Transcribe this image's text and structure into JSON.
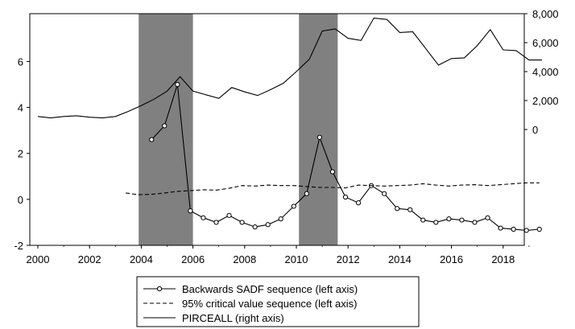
{
  "chart_data": {
    "type": "line",
    "x_ticks": [
      "2000",
      "2002",
      "2004",
      "2006",
      "2008",
      "2010",
      "2012",
      "2014",
      "2016",
      "2018"
    ],
    "left_axis": {
      "ylim": [
        -2,
        8.08
      ],
      "ticks": [
        "-2",
        "0",
        "2",
        "4",
        "6"
      ],
      "tick_values": [
        -2,
        0,
        2,
        4,
        6
      ]
    },
    "right_axis": {
      "ylim": [
        -8000,
        8000
      ],
      "ticks": [
        "0",
        "2,000",
        "4,000",
        "6,000",
        "8,000"
      ],
      "tick_values": [
        0,
        2000,
        4000,
        6000,
        8000
      ]
    },
    "shaded_periods": [
      {
        "start": 2003.9,
        "end": 2006.0
      },
      {
        "start": 2010.1,
        "end": 2011.6
      }
    ],
    "series": [
      {
        "name": "Backwards SADF sequence (left axis)",
        "axis": "left",
        "style": "line-circle-markers",
        "x": [
          2004.4,
          2004.9,
          2005.4,
          2005.9,
          2006.4,
          2006.9,
          2007.4,
          2007.9,
          2008.4,
          2008.9,
          2009.4,
          2009.9,
          2010.4,
          2010.9,
          2011.4,
          2011.9,
          2012.4,
          2012.9,
          2013.4,
          2013.9,
          2014.4,
          2014.9,
          2015.4,
          2015.9,
          2016.4,
          2016.9,
          2017.4,
          2017.9,
          2018.4,
          2018.9,
          2019.4
        ],
        "y": [
          2.6,
          3.2,
          5.0,
          -0.5,
          -0.8,
          -1.0,
          -0.7,
          -1.0,
          -1.2,
          -1.1,
          -0.85,
          -0.3,
          0.25,
          2.7,
          1.2,
          0.1,
          -0.15,
          0.6,
          0.25,
          -0.4,
          -0.45,
          -0.9,
          -1.0,
          -0.85,
          -0.9,
          -1.0,
          -0.8,
          -1.25,
          -1.3,
          -1.35,
          -1.3
        ]
      },
      {
        "name": "95% critical value sequence (left axis)",
        "axis": "left",
        "style": "dashed",
        "x": [
          2003.4,
          2003.9,
          2004.4,
          2004.9,
          2005.4,
          2005.9,
          2006.4,
          2006.9,
          2007.4,
          2007.9,
          2008.4,
          2008.9,
          2009.4,
          2009.9,
          2010.4,
          2010.9,
          2011.4,
          2011.9,
          2012.4,
          2012.9,
          2013.4,
          2013.9,
          2014.4,
          2014.9,
          2015.4,
          2015.9,
          2016.4,
          2016.9,
          2017.4,
          2017.9,
          2018.4,
          2018.9,
          2019.4
        ],
        "y": [
          0.28,
          0.2,
          0.22,
          0.28,
          0.35,
          0.38,
          0.42,
          0.4,
          0.48,
          0.6,
          0.58,
          0.62,
          0.6,
          0.6,
          0.56,
          0.52,
          0.52,
          0.5,
          0.62,
          0.6,
          0.58,
          0.6,
          0.62,
          0.68,
          0.62,
          0.58,
          0.62,
          0.64,
          0.6,
          0.64,
          0.68,
          0.72,
          0.72
        ]
      },
      {
        "name": "PIRCEALL (right axis)",
        "axis": "right",
        "style": "solid",
        "x": [
          2000,
          2000.5,
          2001,
          2001.5,
          2002,
          2002.5,
          2003,
          2003.5,
          2004,
          2004.5,
          2005,
          2005.5,
          2006,
          2006.5,
          2007,
          2007.5,
          2008,
          2008.5,
          2009,
          2009.5,
          2010,
          2010.5,
          2011,
          2011.5,
          2012,
          2012.5,
          2013,
          2013.5,
          2014,
          2014.5,
          2015,
          2015.5,
          2016,
          2016.5,
          2017,
          2017.5,
          2018,
          2018.5,
          2019,
          2019.5
        ],
        "y": [
          900,
          800,
          900,
          950,
          850,
          800,
          900,
          1250,
          1650,
          2100,
          2650,
          3650,
          2650,
          2400,
          2150,
          2900,
          2600,
          2350,
          2750,
          3200,
          4000,
          4850,
          6800,
          6950,
          6300,
          6150,
          7700,
          7600,
          6700,
          6750,
          5600,
          4450,
          4900,
          4950,
          5800,
          6900,
          5500,
          5450,
          4800,
          4800
        ]
      }
    ],
    "legend": {
      "position": "bottom-center"
    }
  }
}
